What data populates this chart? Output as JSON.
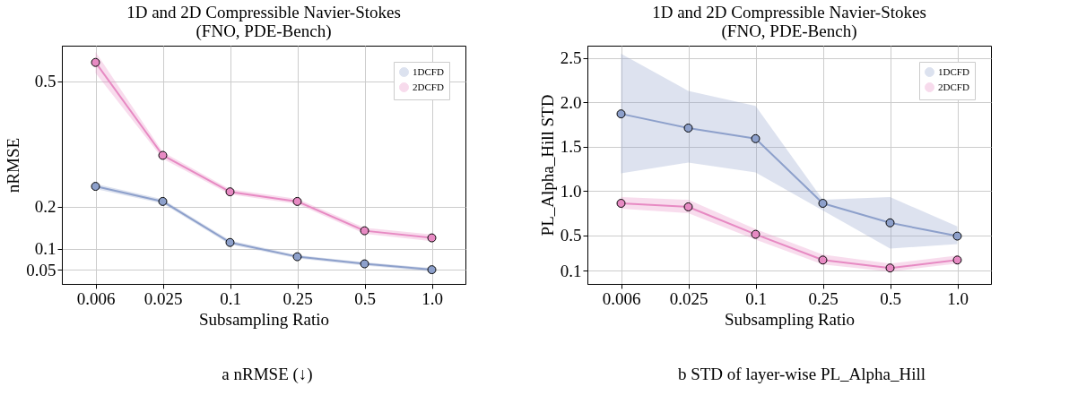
{
  "chart_data": [
    {
      "type": "line",
      "title": "1D and 2D Compressible Navier-Stokes\n(FNO, PDE-Bench)",
      "xlabel": "Subsampling Ratio",
      "ylabel": "nRMSE",
      "categories": [
        "0.006",
        "0.025",
        "0.1",
        "0.25",
        "0.5",
        "1.0"
      ],
      "series": [
        {
          "name": "1DCFD",
          "color": "#8da0cb",
          "values": [
            0.249,
            0.213,
            0.115,
            0.081,
            0.064,
            0.05
          ],
          "lower": [
            0.243,
            0.208,
            0.11,
            0.077,
            0.06,
            0.046
          ],
          "upper": [
            0.255,
            0.218,
            0.12,
            0.085,
            0.068,
            0.054
          ]
        },
        {
          "name": "2DCFD",
          "color": "#e78ac3",
          "values": [
            0.545,
            0.323,
            0.236,
            0.213,
            0.143,
            0.126
          ],
          "lower": [
            0.52,
            0.315,
            0.23,
            0.207,
            0.136,
            0.118
          ],
          "upper": [
            0.57,
            0.331,
            0.242,
            0.219,
            0.15,
            0.134
          ]
        }
      ],
      "ylim": [
        0.016,
        0.585
      ],
      "yticks": [
        0.05,
        0.1,
        0.2,
        0.5
      ],
      "grid": true,
      "legend": "top right",
      "marker": "circle",
      "annotations": [
        "a nRMSE (↓)"
      ]
    },
    {
      "type": "line",
      "title": "1D and 2D Compressible Navier-Stokes\n(FNO, PDE-Bench)",
      "xlabel": "Subsampling Ratio",
      "ylabel": "PL_Alpha_Hill STD",
      "categories": [
        "0.006",
        "0.025",
        "0.1",
        "0.25",
        "0.5",
        "1.0"
      ],
      "series": [
        {
          "name": "1DCFD",
          "color": "#8da0cb",
          "values": [
            1.87,
            1.71,
            1.59,
            0.86,
            0.64,
            0.49
          ],
          "lower": [
            1.2,
            1.32,
            1.21,
            0.78,
            0.35,
            0.4
          ],
          "upper": [
            2.55,
            2.13,
            1.96,
            0.9,
            0.93,
            0.6
          ]
        },
        {
          "name": "2DCFD",
          "color": "#e78ac3",
          "values": [
            0.86,
            0.82,
            0.51,
            0.22,
            0.13,
            0.22
          ],
          "lower": [
            0.8,
            0.75,
            0.45,
            0.17,
            0.09,
            0.18
          ],
          "upper": [
            0.93,
            0.9,
            0.57,
            0.28,
            0.18,
            0.27
          ]
        }
      ],
      "ylim": [
        -0.05,
        2.64
      ],
      "yticks": [
        0.1,
        0.5,
        {
          "value": 1,
          "label": "1.0"
        },
        1.5,
        {
          "value": 2,
          "label": "2.0"
        },
        2.5
      ],
      "grid": true,
      "legend": "top right",
      "marker": "circle",
      "annotations": [
        "b STD of layer-wise PL_Alpha_Hill"
      ]
    }
  ]
}
